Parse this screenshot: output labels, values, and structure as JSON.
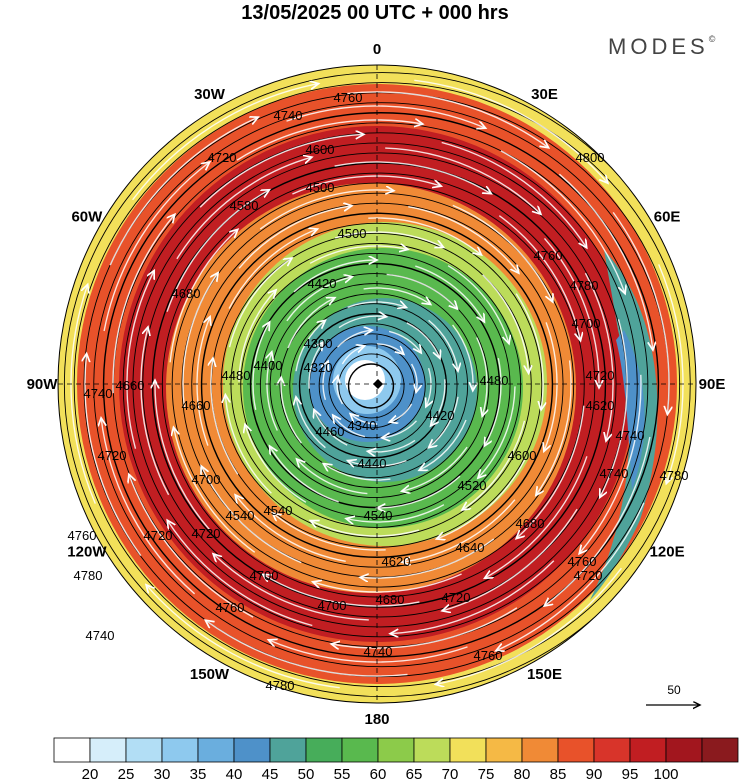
{
  "header": {
    "title": "13/05/2025  00 UTC  + 000 hrs",
    "brand": "MODES",
    "brand_mark": "©"
  },
  "map": {
    "projection": "north-polar-stereographic",
    "longitude_labels": [
      {
        "id": "lon-0",
        "text": "0",
        "bearing": 0
      },
      {
        "id": "lon-30e",
        "text": "30E",
        "bearing": 30
      },
      {
        "id": "lon-60e",
        "text": "60E",
        "bearing": 60
      },
      {
        "id": "lon-90e",
        "text": "90E",
        "bearing": 90
      },
      {
        "id": "lon-120e",
        "text": "120E",
        "bearing": 120
      },
      {
        "id": "lon-150e",
        "text": "150E",
        "bearing": 150
      },
      {
        "id": "lon-180",
        "text": "180",
        "bearing": 180
      },
      {
        "id": "lon-150w",
        "text": "150W",
        "bearing": 210
      },
      {
        "id": "lon-120w",
        "text": "120W",
        "bearing": 240
      },
      {
        "id": "lon-90w",
        "text": "90W",
        "bearing": 270
      },
      {
        "id": "lon-60w",
        "text": "60W",
        "bearing": 300
      },
      {
        "id": "lon-30w",
        "text": "30W",
        "bearing": 330
      }
    ],
    "field_bands": [
      {
        "value": 65,
        "color": "#f2e05a"
      },
      {
        "value": 80,
        "color": "#e8522a"
      },
      {
        "value": 95,
        "color": "#c11e22"
      },
      {
        "value": 75,
        "color": "#f08a36"
      },
      {
        "value": 60,
        "color": "#bcdc5a"
      },
      {
        "value": 55,
        "color": "#59b94e"
      },
      {
        "value": 45,
        "color": "#4fa39a"
      },
      {
        "value": 40,
        "color": "#4e91c9"
      },
      {
        "value": 30,
        "color": "#8ec9ee"
      },
      {
        "value": 20,
        "color": "#ffffff"
      }
    ],
    "contour_labels": [
      {
        "text": "4760"
      },
      {
        "text": "4740"
      },
      {
        "text": "4720"
      },
      {
        "text": "4680"
      },
      {
        "text": "4600"
      },
      {
        "text": "4580"
      },
      {
        "text": "4500"
      },
      {
        "text": "4500"
      },
      {
        "text": "4420"
      },
      {
        "text": "4660"
      },
      {
        "text": "4300"
      },
      {
        "text": "4320"
      },
      {
        "text": "4480"
      },
      {
        "text": "4400"
      },
      {
        "text": "4660"
      },
      {
        "text": "4700"
      },
      {
        "text": "4740"
      },
      {
        "text": "4720"
      },
      {
        "text": "4760"
      },
      {
        "text": "4800"
      },
      {
        "text": "4760"
      },
      {
        "text": "4780"
      },
      {
        "text": "4700"
      },
      {
        "text": "4620"
      },
      {
        "text": "4720"
      },
      {
        "text": "4480"
      },
      {
        "text": "4420"
      },
      {
        "text": "4340"
      },
      {
        "text": "4460"
      },
      {
        "text": "4440"
      },
      {
        "text": "4520"
      },
      {
        "text": "4540"
      },
      {
        "text": "4540"
      },
      {
        "text": "4540"
      },
      {
        "text": "4600"
      },
      {
        "text": "4680"
      },
      {
        "text": "4740"
      },
      {
        "text": "4740"
      },
      {
        "text": "4780"
      },
      {
        "text": "4760"
      },
      {
        "text": "4640"
      },
      {
        "text": "4620"
      },
      {
        "text": "4720"
      },
      {
        "text": "4700"
      },
      {
        "text": "4700"
      },
      {
        "text": "4680"
      },
      {
        "text": "4720"
      },
      {
        "text": "4760"
      },
      {
        "text": "4780"
      },
      {
        "text": "4740"
      },
      {
        "text": "4760"
      },
      {
        "text": "4780"
      },
      {
        "text": "4720"
      },
      {
        "text": "4740"
      },
      {
        "text": "4720"
      }
    ]
  },
  "reference_vector": {
    "label": "50"
  },
  "colorbar": {
    "bins": [
      {
        "color": "#ffffff"
      },
      {
        "color": "#d6eefa"
      },
      {
        "color": "#b2def5"
      },
      {
        "color": "#8ec9ee"
      },
      {
        "color": "#6aaede"
      },
      {
        "color": "#4e91c9"
      },
      {
        "color": "#4fa39a"
      },
      {
        "color": "#47ad5a"
      },
      {
        "color": "#59b94e"
      },
      {
        "color": "#8ccb4a"
      },
      {
        "color": "#bcdc5a"
      },
      {
        "color": "#f2e05a"
      },
      {
        "color": "#f5b945"
      },
      {
        "color": "#f08a36"
      },
      {
        "color": "#e8522a"
      },
      {
        "color": "#d8342a"
      },
      {
        "color": "#c11e22"
      },
      {
        "color": "#a2161e"
      },
      {
        "color": "#8a1a1e"
      }
    ],
    "tick_labels": [
      "20",
      "25",
      "30",
      "35",
      "40",
      "45",
      "50",
      "55",
      "60",
      "65",
      "70",
      "75",
      "80",
      "85",
      "90",
      "95",
      "100"
    ]
  }
}
